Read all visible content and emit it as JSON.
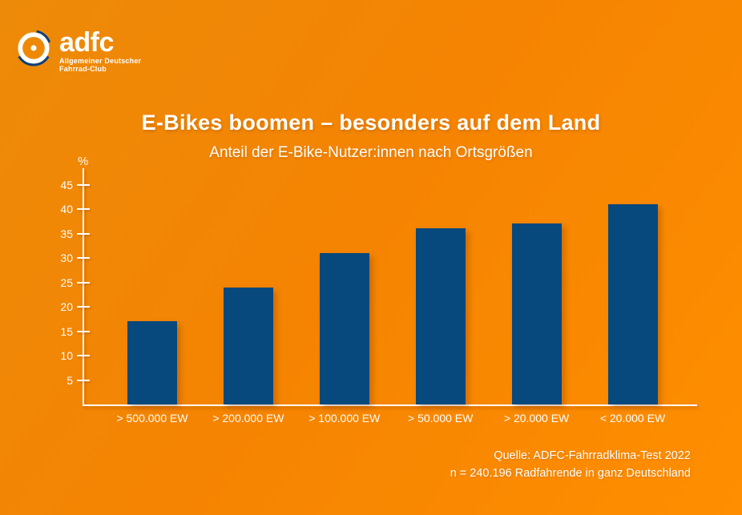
{
  "logo": {
    "brand": "adfc",
    "tagline_line1": "Allgemeiner Deutscher",
    "tagline_line2": "Fahrrad-Club"
  },
  "header": {
    "title": "E-Bikes boomen – besonders auf dem Land",
    "subtitle": "Anteil der E-Bike-Nutzer:innen nach Ortsgrößen"
  },
  "chart_data": {
    "type": "bar",
    "title": "E-Bikes boomen – besonders auf dem Land",
    "subtitle": "Anteil der E-Bike-Nutzer:innen nach Ortsgrößen",
    "categories": [
      "> 500.000 EW",
      "> 200.000 EW",
      "> 100.000 EW",
      "> 50.000 EW",
      "> 20.000 EW",
      "< 20.000 EW"
    ],
    "values": [
      17,
      24,
      31,
      36,
      37,
      41
    ],
    "unit_label": "%",
    "ylabel": "%",
    "xlabel": "",
    "y_ticks": [
      5,
      10,
      15,
      20,
      25,
      30,
      35,
      40,
      45
    ],
    "ylim": [
      0,
      48
    ],
    "grid": false,
    "legend": "none",
    "bar_color": "#07497d",
    "axis_color": "#ffffff"
  },
  "footer": {
    "source_line1": "Quelle: ADFC-Fahrradklima-Test 2022",
    "source_line2": "n = 240.196 Radfahrende in ganz Deutschland"
  },
  "colors": {
    "background_start": "#ed8a09",
    "background_end": "#ff8e00",
    "bar": "#07497d",
    "text": "#ffffff",
    "logo_blue": "#0d4076"
  }
}
